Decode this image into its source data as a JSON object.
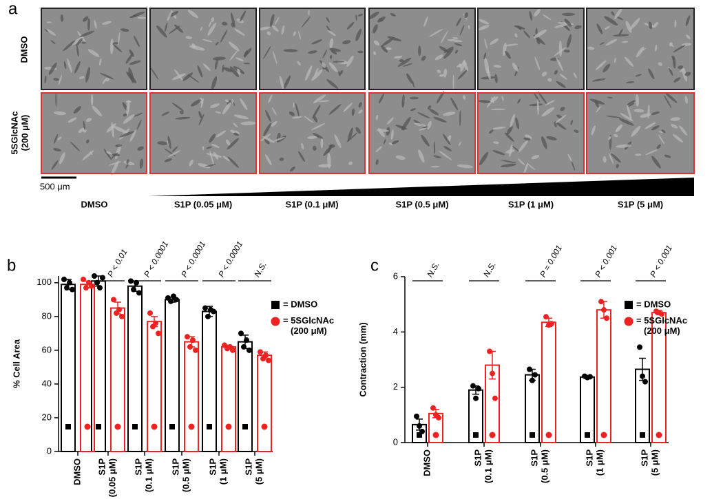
{
  "panel_a": {
    "label": "a",
    "row_labels": [
      "DMSO",
      "5SGlcNAc\n(200 μM)"
    ],
    "scale_bar": "500 μm",
    "column_labels": [
      "DMSO",
      "S1P (0.05 μM)",
      "S1P (0.1 μM)",
      "S1P (0.5 μM)",
      "S1P (1 μM)",
      "S1P (5 μM)"
    ]
  },
  "chart_data": [
    {
      "panel_label": "b",
      "type": "bar",
      "y_label": "% Cell Area",
      "categories": [
        "DMSO",
        "S1P\n(0.05 μM)",
        "S1P\n(0.1 μM)",
        "S1P\n(0.5 μM)",
        "S1P\n(1 μM)",
        "S1P\n(5 μM)"
      ],
      "series": [
        {
          "name": "= DMSO",
          "color": "#000000",
          "values": [
            99,
            101,
            98,
            90,
            83,
            65
          ],
          "errors": [
            3,
            3,
            3,
            1.5,
            3,
            4
          ],
          "points": [
            [
              102,
              97,
              100,
              96
            ],
            [
              104,
              100,
              97,
              103
            ],
            [
              101,
              96,
              100,
              94
            ],
            [
              91,
              89,
              92,
              90
            ],
            [
              85,
              80,
              84,
              83
            ],
            [
              70,
              62,
              66,
              60
            ]
          ]
        },
        {
          "name": "= 5SGlcNAc\n(200 μM)",
          "color": "#ee2222",
          "values": [
            99,
            85,
            77,
            65,
            62,
            57
          ],
          "errors": [
            2,
            3.5,
            3,
            3,
            1,
            2
          ],
          "points": [
            [
              102,
              97,
              100,
              98
            ],
            [
              90,
              82,
              84,
              80
            ],
            [
              82,
              74,
              76,
              70
            ],
            [
              68,
              62,
              66,
              60
            ],
            [
              63,
              61,
              62,
              60
            ],
            [
              59,
              55,
              57,
              54
            ]
          ]
        }
      ],
      "annotations": [
        null,
        "P < 0.01",
        "P < 0.0001",
        "P < 0.0001",
        "P < 0.0001",
        "N.S."
      ],
      "ylim": [
        0,
        104
      ],
      "yticks": [
        0,
        20,
        40,
        60,
        80,
        100
      ]
    },
    {
      "panel_label": "c",
      "type": "bar",
      "y_label": "Contraction (mm)",
      "categories": [
        "DMSO",
        "S1P\n(0.1 μM)",
        "S1P\n(0.5 μM)",
        "S1P\n(1 μM)",
        "S1P\n(5 μM)"
      ],
      "series": [
        {
          "name": "= DMSO",
          "color": "#000000",
          "values": [
            0.65,
            1.9,
            2.45,
            2.37,
            2.65
          ],
          "errors": [
            0.2,
            0.15,
            0.2,
            0.05,
            0.4
          ],
          "points": [
            [
              0.95,
              0.6,
              0.4
            ],
            [
              2.05,
              1.6,
              1.95
            ],
            [
              2.65,
              2.25,
              2.45
            ],
            [
              2.4,
              2.35,
              2.38
            ],
            [
              3.45,
              2.4,
              2.2
            ]
          ]
        },
        {
          "name": "= 5SGlcNAc\n(200 μM)",
          "color": "#ee2222",
          "values": [
            1.05,
            2.8,
            4.35,
            4.8,
            4.7
          ],
          "errors": [
            0.15,
            0.5,
            0.15,
            0.3,
            0.08
          ],
          "points": [
            [
              1.25,
              1.0,
              0.9
            ],
            [
              3.3,
              2.5,
              1.6
            ],
            [
              4.55,
              4.25,
              4.3
            ],
            [
              5.1,
              4.8,
              4.5
            ],
            [
              4.75,
              4.7,
              4.65
            ]
          ]
        }
      ],
      "annotations": [
        "N.S.",
        "N.S.",
        "P = 0.001",
        "P < 0.001",
        "P < 0.001"
      ],
      "ylim": [
        0,
        6
      ],
      "yticks": [
        0,
        2,
        4,
        6
      ]
    }
  ]
}
